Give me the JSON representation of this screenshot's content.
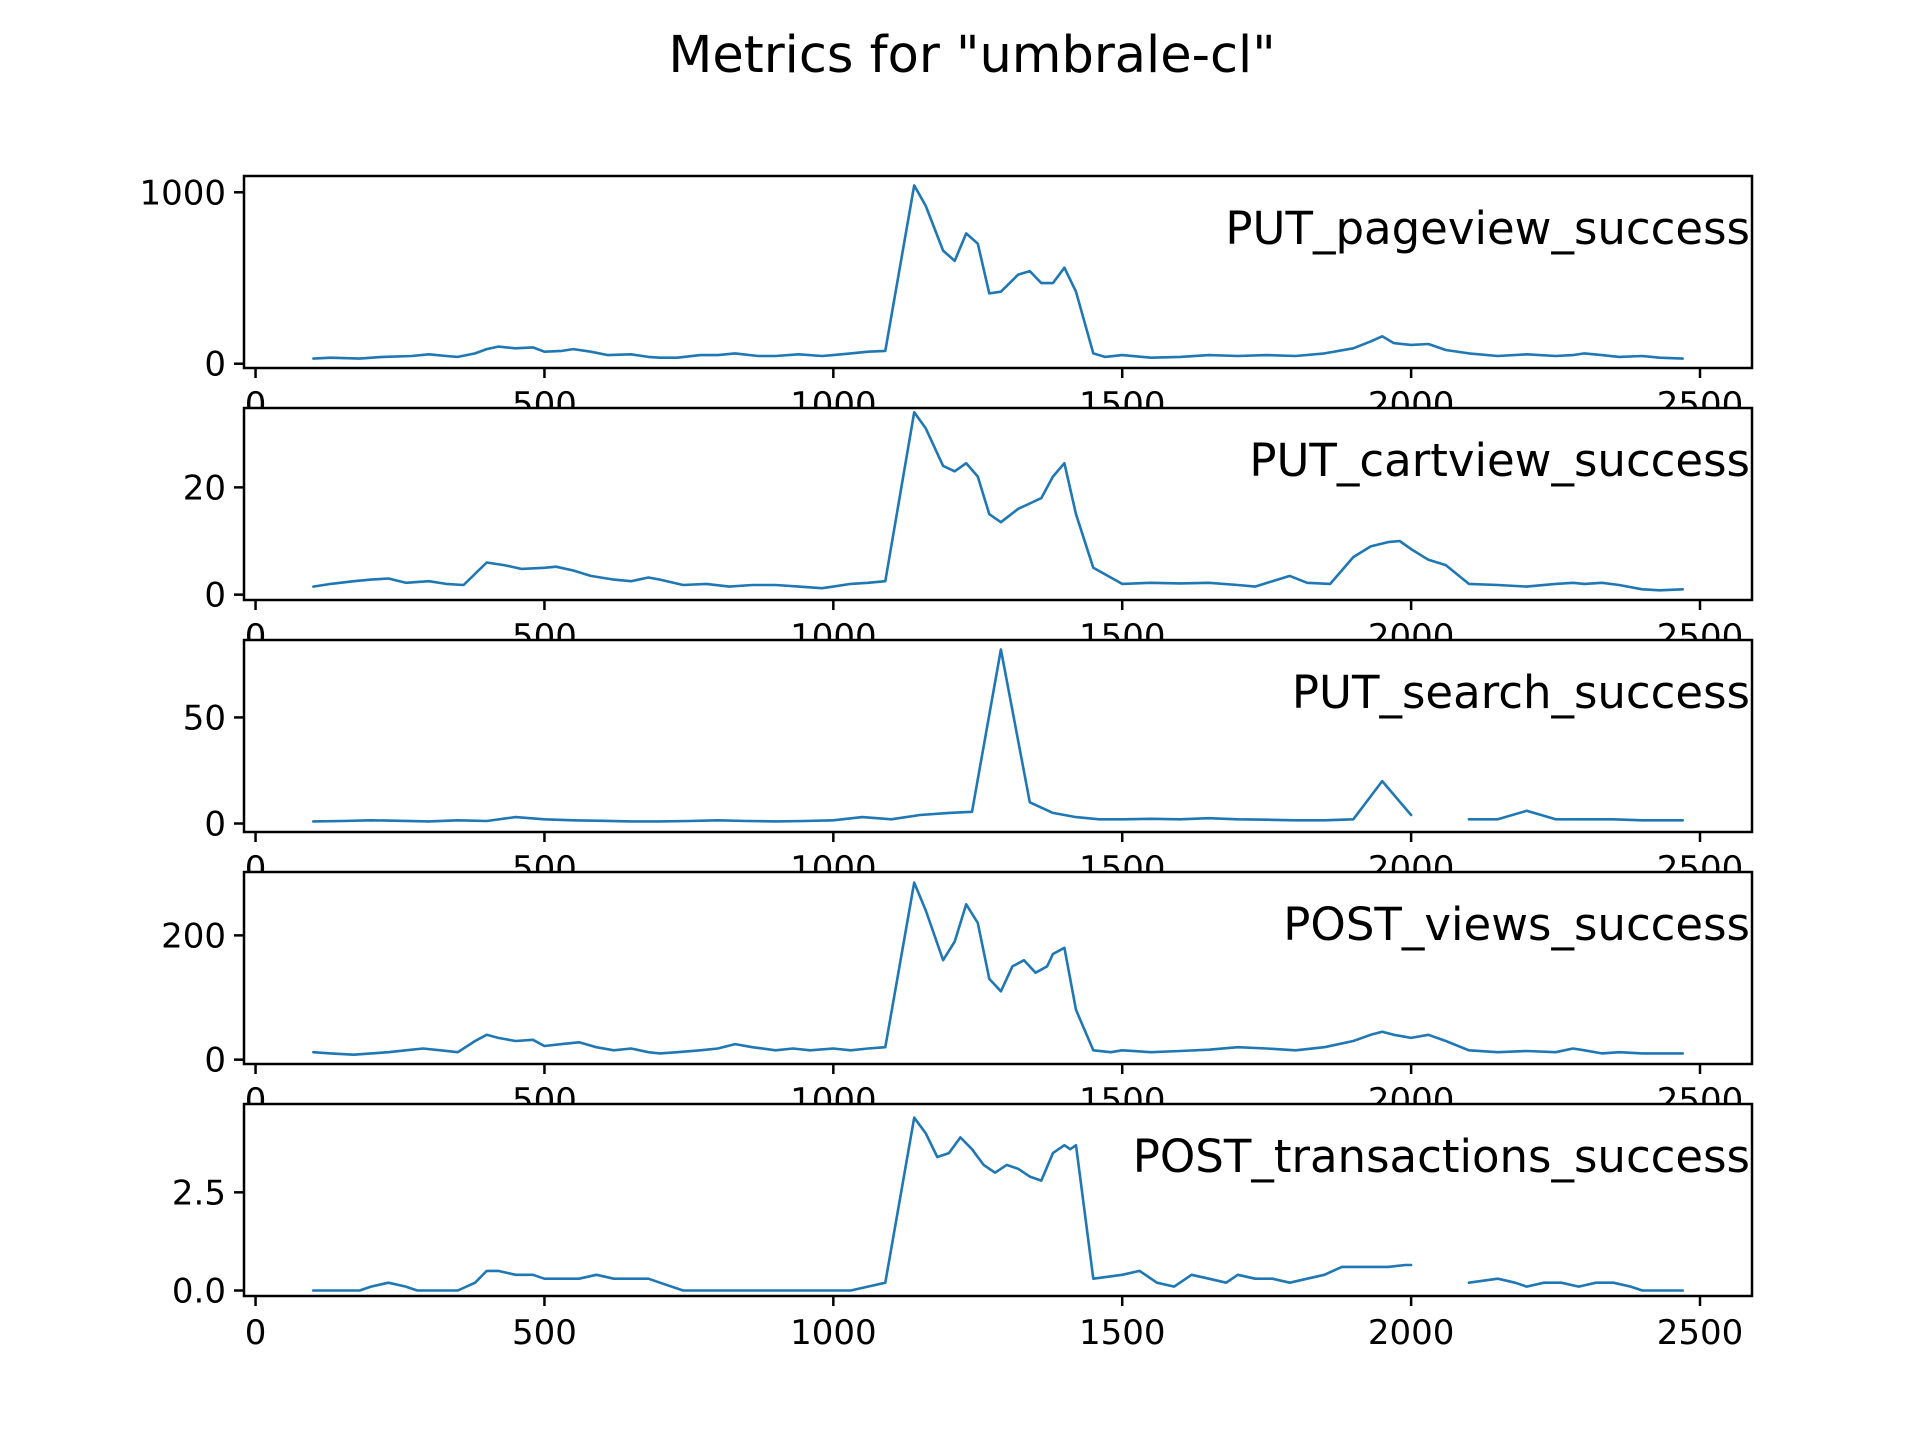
{
  "figure": {
    "title": "Metrics for \"umbrale-cl\""
  },
  "colors": {
    "line": "#1f77b4",
    "axis": "#000000",
    "background": "#ffffff"
  },
  "chart_data": [
    {
      "type": "line",
      "series_label": "PUT_pageview_success",
      "xlim": [
        -20,
        2590
      ],
      "ylim": [
        -25,
        1095
      ],
      "xticks": [
        0,
        500,
        1000,
        1500,
        2000,
        2500
      ],
      "xtick_labels": [
        "0",
        "500",
        "1000",
        "1500",
        "2000",
        "2500"
      ],
      "yticks": [
        0,
        1000
      ],
      "ytick_labels": [
        "0",
        "1000"
      ],
      "x": [
        100,
        130,
        180,
        220,
        270,
        300,
        330,
        350,
        380,
        400,
        420,
        450,
        480,
        500,
        530,
        550,
        580,
        610,
        650,
        680,
        700,
        730,
        770,
        800,
        830,
        870,
        900,
        940,
        980,
        1000,
        1030,
        1060,
        1090,
        1140,
        1160,
        1190,
        1210,
        1230,
        1250,
        1270,
        1290,
        1320,
        1340,
        1360,
        1380,
        1400,
        1420,
        1450,
        1470,
        1500,
        1550,
        1600,
        1650,
        1700,
        1750,
        1800,
        1850,
        1900,
        1930,
        1950,
        1970,
        2000,
        2030,
        2060,
        2100,
        2150,
        2200,
        2250,
        2280,
        2300,
        2330,
        2360,
        2400,
        2430,
        2470
      ],
      "y": [
        30,
        35,
        30,
        40,
        45,
        55,
        45,
        40,
        60,
        85,
        100,
        90,
        95,
        70,
        75,
        85,
        70,
        50,
        55,
        40,
        35,
        35,
        50,
        50,
        60,
        45,
        45,
        55,
        45,
        50,
        60,
        70,
        75,
        1040,
        920,
        660,
        600,
        760,
        700,
        410,
        420,
        520,
        540,
        470,
        470,
        560,
        420,
        60,
        40,
        50,
        35,
        40,
        50,
        45,
        50,
        45,
        60,
        90,
        130,
        160,
        120,
        110,
        115,
        80,
        60,
        45,
        55,
        45,
        50,
        60,
        50,
        40,
        45,
        35,
        30
      ]
    },
    {
      "type": "line",
      "series_label": "PUT_cartview_success",
      "xlim": [
        -20,
        2590
      ],
      "ylim": [
        -1.0,
        34.8
      ],
      "xticks": [
        0,
        500,
        1000,
        1500,
        2000,
        2500
      ],
      "xtick_labels": [
        "0",
        "500",
        "1000",
        "1500",
        "2000",
        "2500"
      ],
      "yticks": [
        0,
        20
      ],
      "ytick_labels": [
        "0",
        "20"
      ],
      "x": [
        100,
        130,
        170,
        200,
        230,
        260,
        300,
        330,
        360,
        400,
        430,
        460,
        500,
        520,
        550,
        580,
        620,
        650,
        680,
        700,
        740,
        780,
        820,
        860,
        900,
        940,
        980,
        1000,
        1030,
        1060,
        1090,
        1140,
        1160,
        1190,
        1210,
        1230,
        1250,
        1270,
        1290,
        1320,
        1340,
        1360,
        1380,
        1400,
        1420,
        1450,
        1500,
        1550,
        1600,
        1650,
        1700,
        1730,
        1760,
        1790,
        1820,
        1860,
        1900,
        1930,
        1960,
        1980,
        2000,
        2030,
        2060,
        2100,
        2150,
        2200,
        2250,
        2280,
        2300,
        2330,
        2360,
        2400,
        2430,
        2470
      ],
      "y": [
        1.5,
        2,
        2.5,
        2.8,
        3,
        2.2,
        2.5,
        2,
        1.8,
        6,
        5.5,
        4.8,
        5,
        5.2,
        4.5,
        3.5,
        2.8,
        2.5,
        3.2,
        2.8,
        1.8,
        2,
        1.5,
        1.8,
        1.8,
        1.5,
        1.2,
        1.5,
        2,
        2.2,
        2.5,
        34,
        31,
        24,
        23,
        24.5,
        22,
        15,
        13.5,
        16,
        17,
        18,
        22,
        24.5,
        15,
        5,
        2,
        2.2,
        2.1,
        2.2,
        1.8,
        1.5,
        2.5,
        3.5,
        2.2,
        2,
        7,
        9,
        9.8,
        10,
        8.5,
        6.5,
        5.5,
        2,
        1.8,
        1.5,
        2,
        2.2,
        2,
        2.2,
        1.8,
        1,
        0.8,
        1
      ]
    },
    {
      "type": "line",
      "series_label": "PUT_search_success",
      "xlim": [
        -20,
        2590
      ],
      "ylim": [
        -4,
        86.5
      ],
      "xticks": [
        0,
        500,
        1000,
        1500,
        2000,
        2500
      ],
      "xtick_labels": [
        "0",
        "500",
        "1000",
        "1500",
        "2000",
        "2500"
      ],
      "yticks": [
        0,
        50
      ],
      "ytick_labels": [
        "0",
        "50"
      ],
      "x": [
        100,
        150,
        200,
        250,
        300,
        350,
        400,
        450,
        500,
        550,
        600,
        650,
        700,
        750,
        800,
        850,
        900,
        950,
        1000,
        1050,
        1100,
        1150,
        1200,
        1240,
        1290,
        1340,
        1380,
        1420,
        1460,
        1500,
        1550,
        1600,
        1650,
        1700,
        1750,
        1800,
        1850,
        1900,
        1950,
        2000,
        null,
        2100,
        2150,
        2200,
        2250,
        2300,
        2350,
        2400,
        2450,
        2470
      ],
      "y": [
        1,
        1.2,
        1.5,
        1.3,
        1,
        1.5,
        1.2,
        3,
        2,
        1.5,
        1.3,
        1,
        1,
        1.2,
        1.5,
        1.2,
        1,
        1.2,
        1.5,
        3,
        2,
        4,
        5,
        5.5,
        82,
        10,
        5,
        3,
        2,
        2,
        2.2,
        2,
        2.5,
        2,
        1.8,
        1.5,
        1.5,
        2,
        20,
        4,
        null,
        2,
        2,
        6,
        2,
        2,
        2,
        1.5,
        1.5,
        1.5
      ]
    },
    {
      "type": "line",
      "series_label": "POST_views_success",
      "xlim": [
        -20,
        2590
      ],
      "ylim": [
        -7,
        302
      ],
      "xticks": [
        0,
        500,
        1000,
        1500,
        2000,
        2500
      ],
      "xtick_labels": [
        "0",
        "500",
        "1000",
        "1500",
        "2000",
        "2500"
      ],
      "yticks": [
        0,
        200
      ],
      "ytick_labels": [
        "0",
        "200"
      ],
      "x": [
        100,
        130,
        170,
        200,
        230,
        260,
        290,
        320,
        350,
        380,
        400,
        420,
        450,
        480,
        500,
        530,
        560,
        590,
        620,
        650,
        680,
        700,
        730,
        770,
        800,
        830,
        860,
        900,
        930,
        960,
        1000,
        1030,
        1060,
        1090,
        1140,
        1160,
        1190,
        1210,
        1230,
        1250,
        1270,
        1290,
        1310,
        1330,
        1350,
        1370,
        1380,
        1400,
        1420,
        1450,
        1480,
        1500,
        1550,
        1600,
        1650,
        1700,
        1750,
        1800,
        1850,
        1900,
        1930,
        1950,
        1970,
        2000,
        2030,
        2060,
        2100,
        2150,
        2200,
        2250,
        2280,
        2300,
        2330,
        2360,
        2400,
        2430,
        2470
      ],
      "y": [
        12,
        10,
        8,
        10,
        12,
        15,
        18,
        15,
        12,
        30,
        40,
        35,
        30,
        32,
        22,
        25,
        28,
        20,
        15,
        18,
        12,
        10,
        12,
        15,
        18,
        25,
        20,
        15,
        18,
        15,
        18,
        15,
        18,
        20,
        285,
        240,
        160,
        190,
        250,
        220,
        130,
        110,
        150,
        160,
        140,
        150,
        170,
        180,
        80,
        15,
        12,
        15,
        12,
        14,
        16,
        20,
        18,
        15,
        20,
        30,
        40,
        45,
        40,
        35,
        40,
        30,
        15,
        12,
        14,
        12,
        18,
        15,
        10,
        12,
        10,
        10,
        10
      ]
    },
    {
      "type": "line",
      "series_label": "POST_transactions_success",
      "xlim": [
        -20,
        2590
      ],
      "ylim": [
        -0.14,
        4.75
      ],
      "xticks": [
        0,
        500,
        1000,
        1500,
        2000,
        2500
      ],
      "xtick_labels": [
        "0",
        "500",
        "1000",
        "1500",
        "2000",
        "2500"
      ],
      "yticks": [
        0.0,
        2.5
      ],
      "ytick_labels": [
        "0.0",
        "2.5"
      ],
      "x": [
        100,
        150,
        180,
        200,
        230,
        260,
        280,
        300,
        350,
        380,
        400,
        420,
        450,
        480,
        500,
        530,
        560,
        590,
        620,
        650,
        680,
        700,
        740,
        800,
        900,
        1000,
        1030,
        1060,
        1090,
        1140,
        1160,
        1180,
        1200,
        1220,
        1240,
        1260,
        1280,
        1300,
        1320,
        1340,
        1360,
        1380,
        1400,
        1410,
        1420,
        1450,
        1500,
        1530,
        1560,
        1590,
        1620,
        1650,
        1680,
        1700,
        1730,
        1760,
        1790,
        1820,
        1850,
        1880,
        1900,
        1930,
        1960,
        1990,
        2000,
        null,
        2100,
        2150,
        2180,
        2200,
        2230,
        2260,
        2290,
        2320,
        2350,
        2380,
        2400,
        2430,
        2470
      ],
      "y": [
        0,
        0,
        0,
        0.1,
        0.2,
        0.1,
        0,
        0,
        0,
        0.2,
        0.5,
        0.5,
        0.4,
        0.4,
        0.3,
        0.3,
        0.3,
        0.4,
        0.3,
        0.3,
        0.3,
        0.2,
        0,
        0,
        0,
        0,
        0,
        0.1,
        0.2,
        4.4,
        4,
        3.4,
        3.5,
        3.9,
        3.6,
        3.2,
        3,
        3.2,
        3.1,
        2.9,
        2.8,
        3.5,
        3.7,
        3.6,
        3.7,
        0.3,
        0.4,
        0.5,
        0.2,
        0.1,
        0.4,
        0.3,
        0.2,
        0.4,
        0.3,
        0.3,
        0.2,
        0.3,
        0.4,
        0.6,
        0.6,
        0.6,
        0.6,
        0.65,
        0.65,
        null,
        0.2,
        0.3,
        0.2,
        0.1,
        0.2,
        0.2,
        0.1,
        0.2,
        0.2,
        0.1,
        0,
        0,
        0
      ]
    }
  ]
}
